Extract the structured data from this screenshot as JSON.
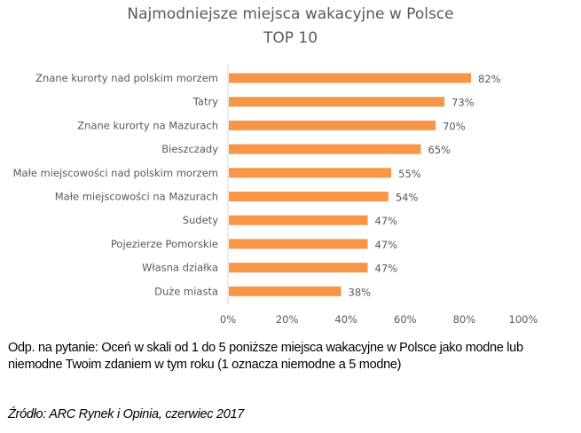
{
  "chart_data": {
    "type": "bar",
    "orientation": "horizontal",
    "title": "Najmodniejsze miejsca wakacyjne w Polsce",
    "subtitle": "TOP 10",
    "categories": [
      "Znane kurorty nad polskim morzem",
      "Tatry",
      "Znane kurorty na Mazurach",
      "Bieszczady",
      "Małe miejscowości nad polskim morzem",
      "Małe miejscowości na Mazurach",
      "Sudety",
      "Pojezierze Pomorskie",
      "Własna działka",
      "Duże miasta"
    ],
    "values": [
      82,
      73,
      70,
      65,
      55,
      54,
      47,
      47,
      47,
      38
    ],
    "data_labels": [
      "82%",
      "73%",
      "70%",
      "65%",
      "55%",
      "54%",
      "47%",
      "47%",
      "47%",
      "38%"
    ],
    "xlim": [
      0,
      100
    ],
    "xticks": [
      "0%",
      "20%",
      "40%",
      "60%",
      "80%",
      "100%"
    ],
    "grid": false,
    "bar_color": "#F79646"
  },
  "note": "Odp. na pytanie: Oceń w skali od 1 do 5 poniższe miejsca wakacyjne w Polsce jako modne lub niemodne Twoim zdaniem w tym roku (1 oznacza niemodne a 5 modne)",
  "source": "Źródło: ARC Rynek i Opinia, czerwiec 2017"
}
